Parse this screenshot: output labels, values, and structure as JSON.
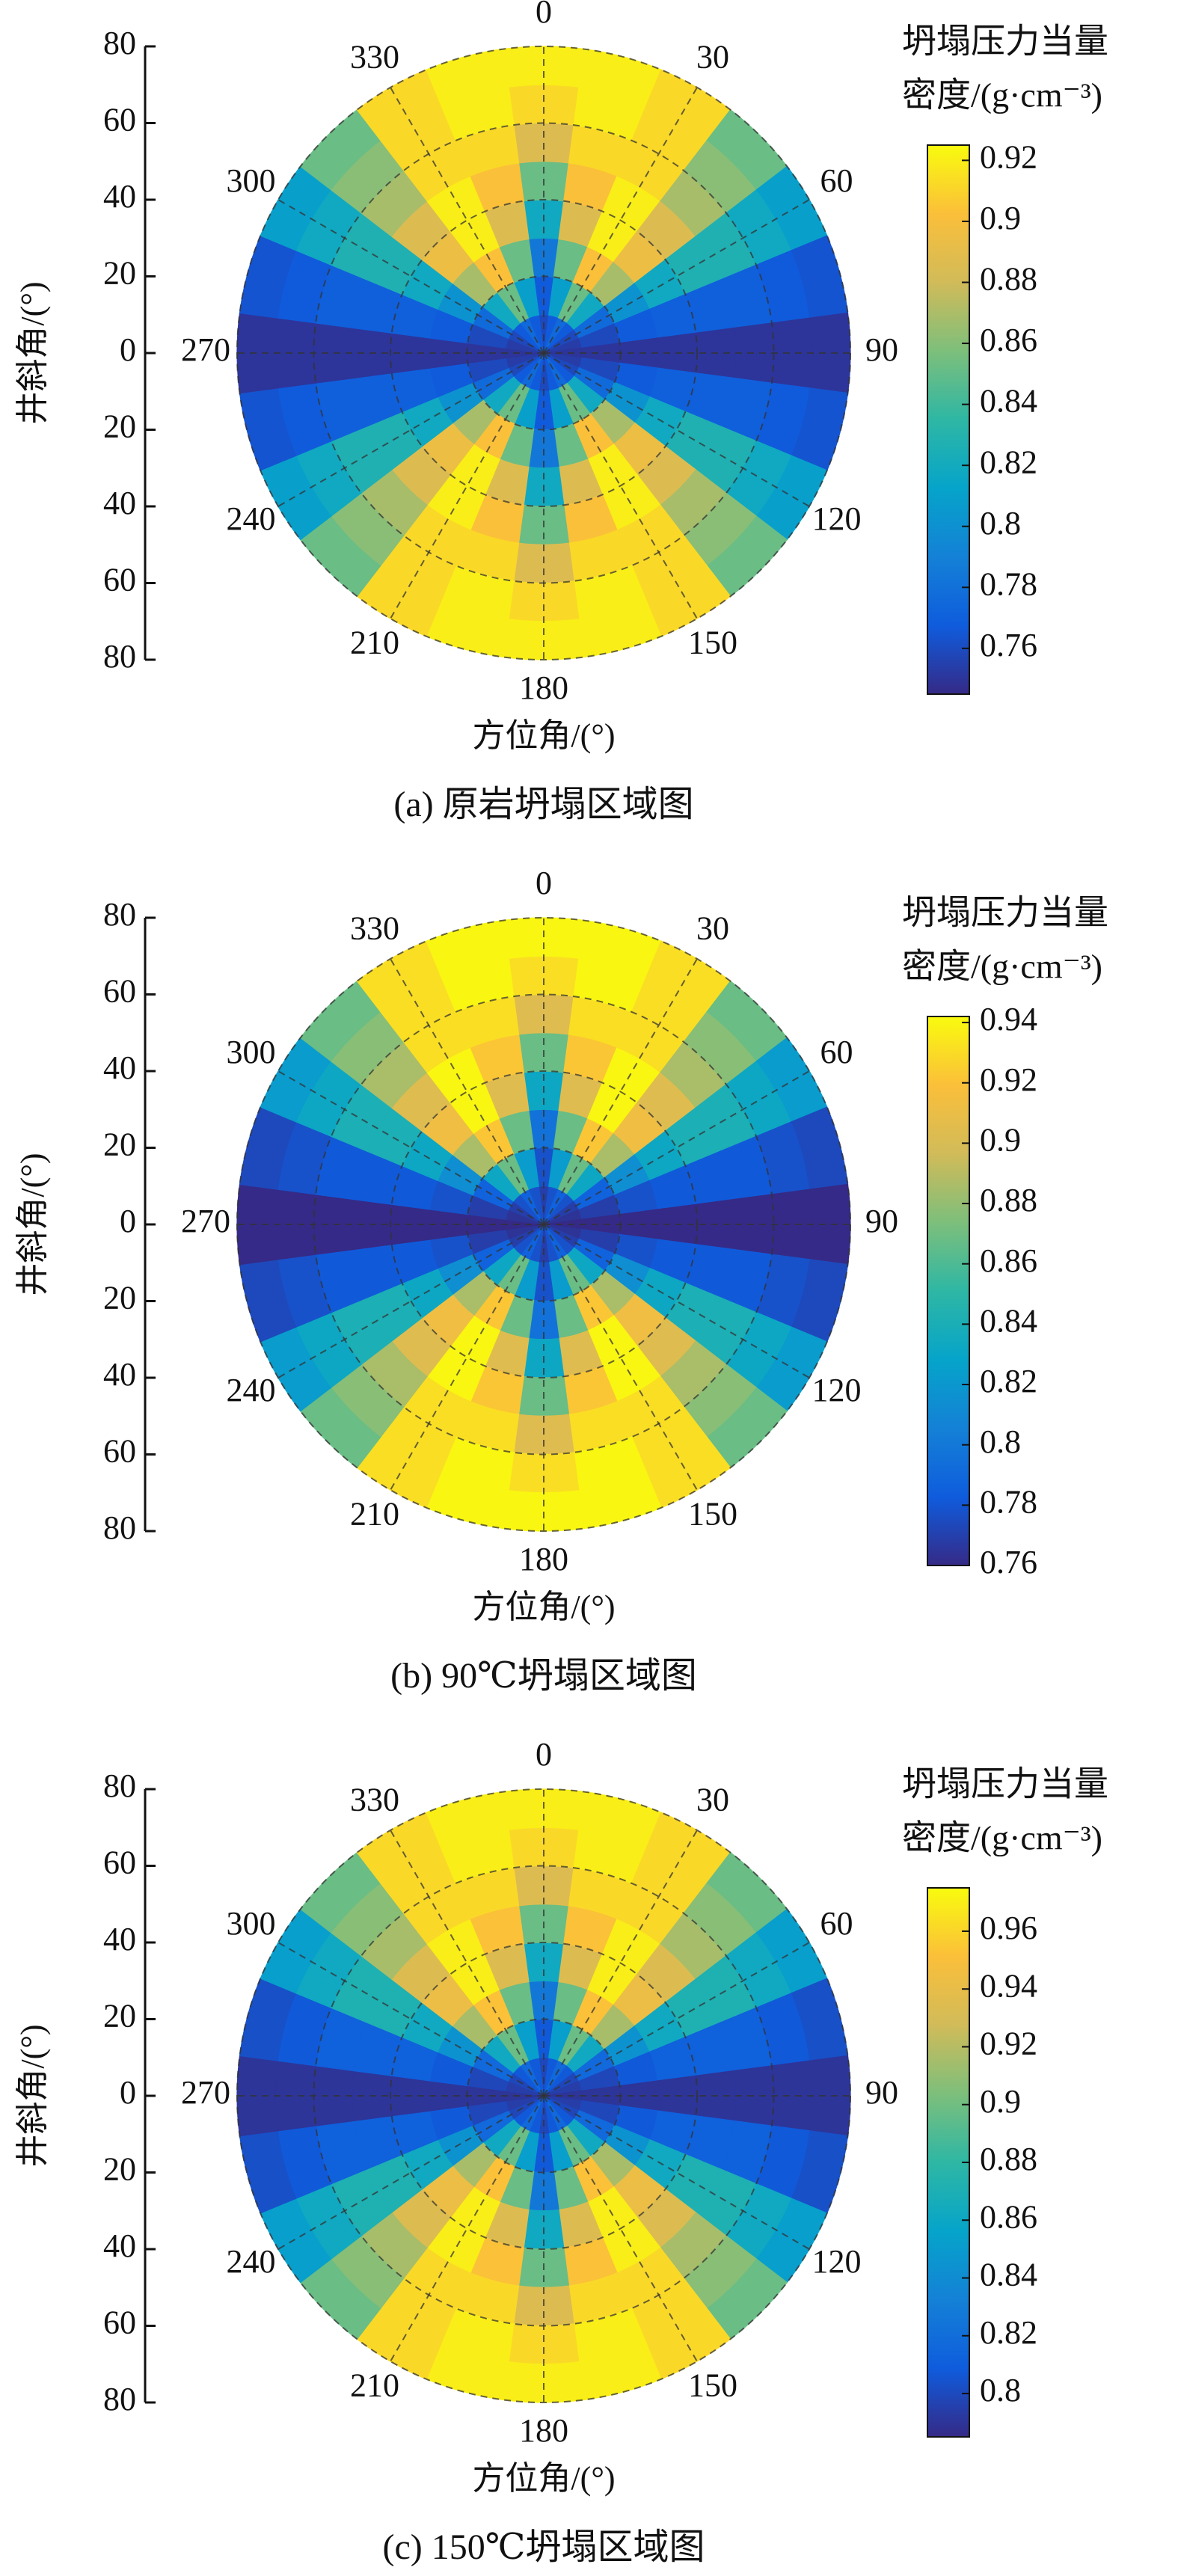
{
  "chart_data": [
    {
      "type": "polar_heatmap",
      "title": "(a) 原岩坍塌区域图",
      "xlabel": "方位角/(°)",
      "ylabel": "井斜角/(°)",
      "colorbar_label": [
        "坍塌压力当量",
        "密度/(g·cm⁻³)"
      ],
      "azimuth_ticks": [
        0,
        30,
        60,
        90,
        120,
        150,
        180,
        210,
        240,
        270,
        300,
        330
      ],
      "rlim": [
        0,
        80
      ],
      "radial_ticks": [
        0,
        20,
        40,
        60,
        80
      ],
      "azimuth_bins": [
        0,
        15,
        30,
        45,
        60,
        75,
        90,
        105,
        120,
        135,
        150,
        165,
        180,
        195,
        210,
        225,
        240,
        255,
        270,
        285,
        300,
        315,
        330,
        345
      ],
      "inclination_bins": [
        0,
        10,
        20,
        30,
        40,
        50,
        60,
        70,
        80
      ],
      "values": [
        [
          0.759,
          0.767,
          0.784,
          0.818,
          0.852,
          0.886,
          0.912,
          0.92
        ],
        [
          0.767,
          0.81,
          0.852,
          0.886,
          0.903,
          0.912,
          0.92,
          0.92
        ],
        [
          0.776,
          0.852,
          0.903,
          0.92,
          0.92,
          0.912,
          0.912,
          0.912
        ],
        [
          0.767,
          0.818,
          0.869,
          0.895,
          0.886,
          0.869,
          0.861,
          0.852
        ],
        [
          0.759,
          0.776,
          0.801,
          0.818,
          0.827,
          0.827,
          0.818,
          0.81
        ],
        [
          0.753,
          0.759,
          0.767,
          0.77,
          0.77,
          0.77,
          0.767,
          0.764
        ],
        [
          0.75,
          0.75,
          0.75,
          0.75,
          0.75,
          0.75,
          0.75,
          0.75
        ],
        [
          0.753,
          0.759,
          0.767,
          0.77,
          0.77,
          0.77,
          0.767,
          0.764
        ],
        [
          0.759,
          0.776,
          0.801,
          0.818,
          0.827,
          0.827,
          0.818,
          0.81
        ],
        [
          0.767,
          0.818,
          0.869,
          0.895,
          0.886,
          0.869,
          0.861,
          0.852
        ],
        [
          0.776,
          0.852,
          0.903,
          0.92,
          0.92,
          0.912,
          0.912,
          0.912
        ],
        [
          0.767,
          0.81,
          0.852,
          0.886,
          0.903,
          0.912,
          0.92,
          0.92
        ],
        [
          0.759,
          0.767,
          0.784,
          0.818,
          0.852,
          0.886,
          0.912,
          0.92
        ],
        [
          0.767,
          0.81,
          0.852,
          0.886,
          0.903,
          0.912,
          0.92,
          0.92
        ],
        [
          0.776,
          0.852,
          0.903,
          0.92,
          0.92,
          0.912,
          0.912,
          0.912
        ],
        [
          0.767,
          0.818,
          0.869,
          0.895,
          0.886,
          0.869,
          0.861,
          0.852
        ],
        [
          0.759,
          0.776,
          0.801,
          0.818,
          0.827,
          0.827,
          0.818,
          0.81
        ],
        [
          0.753,
          0.759,
          0.767,
          0.77,
          0.77,
          0.77,
          0.767,
          0.764
        ],
        [
          0.75,
          0.75,
          0.75,
          0.75,
          0.75,
          0.75,
          0.75,
          0.75
        ],
        [
          0.753,
          0.759,
          0.767,
          0.77,
          0.77,
          0.77,
          0.767,
          0.764
        ],
        [
          0.759,
          0.776,
          0.801,
          0.818,
          0.827,
          0.827,
          0.818,
          0.81
        ],
        [
          0.767,
          0.818,
          0.869,
          0.895,
          0.886,
          0.869,
          0.861,
          0.852
        ],
        [
          0.776,
          0.852,
          0.903,
          0.92,
          0.92,
          0.912,
          0.912,
          0.912
        ],
        [
          0.767,
          0.81,
          0.852,
          0.886,
          0.903,
          0.912,
          0.92,
          0.92
        ]
      ],
      "clim": [
        0.745,
        0.925
      ],
      "cticks": [
        0.76,
        0.78,
        0.8,
        0.82,
        0.84,
        0.86,
        0.88,
        0.9,
        0.92
      ],
      "colormap": [
        "#352a87",
        "#0f5cdd",
        "#1481d6",
        "#06a4ca",
        "#2eb7a4",
        "#7dbf7b",
        "#d1bb59",
        "#fbbf3a",
        "#f9fb0e"
      ]
    },
    {
      "type": "polar_heatmap",
      "title": "(b) 90℃坍塌区域图",
      "xlabel": "方位角/(°)",
      "ylabel": "井斜角/(°)",
      "colorbar_label": [
        "坍塌压力当量",
        "密度/(g·cm⁻³)"
      ],
      "azimuth_ticks": [
        0,
        30,
        60,
        90,
        120,
        150,
        180,
        210,
        240,
        270,
        300,
        330
      ],
      "rlim": [
        0,
        80
      ],
      "radial_ticks": [
        0,
        20,
        40,
        60,
        80
      ],
      "azimuth_bins": [
        0,
        15,
        30,
        45,
        60,
        75,
        90,
        105,
        120,
        135,
        150,
        165,
        180,
        195,
        210,
        225,
        240,
        255,
        270,
        285,
        300,
        315,
        330,
        345
      ],
      "inclination_bins": [
        0,
        10,
        20,
        30,
        40,
        50,
        60,
        70,
        80
      ],
      "values": [
        [
          0.769,
          0.778,
          0.796,
          0.832,
          0.868,
          0.904,
          0.931,
          0.94
        ],
        [
          0.778,
          0.823,
          0.868,
          0.904,
          0.922,
          0.931,
          0.94,
          0.94
        ],
        [
          0.787,
          0.868,
          0.922,
          0.94,
          0.94,
          0.931,
          0.931,
          0.931
        ],
        [
          0.778,
          0.832,
          0.886,
          0.913,
          0.904,
          0.886,
          0.877,
          0.868
        ],
        [
          0.769,
          0.787,
          0.814,
          0.832,
          0.841,
          0.841,
          0.832,
          0.823
        ],
        [
          0.764,
          0.769,
          0.778,
          0.782,
          0.782,
          0.782,
          0.778,
          0.774
        ],
        [
          0.76,
          0.76,
          0.76,
          0.76,
          0.76,
          0.76,
          0.76,
          0.76
        ],
        [
          0.764,
          0.769,
          0.778,
          0.782,
          0.782,
          0.782,
          0.778,
          0.774
        ],
        [
          0.769,
          0.787,
          0.814,
          0.832,
          0.841,
          0.841,
          0.832,
          0.823
        ],
        [
          0.778,
          0.832,
          0.886,
          0.913,
          0.904,
          0.886,
          0.877,
          0.868
        ],
        [
          0.787,
          0.868,
          0.922,
          0.94,
          0.94,
          0.931,
          0.931,
          0.931
        ],
        [
          0.778,
          0.823,
          0.868,
          0.904,
          0.922,
          0.931,
          0.94,
          0.94
        ],
        [
          0.769,
          0.778,
          0.796,
          0.832,
          0.868,
          0.904,
          0.931,
          0.94
        ],
        [
          0.778,
          0.823,
          0.868,
          0.904,
          0.922,
          0.931,
          0.94,
          0.94
        ],
        [
          0.787,
          0.868,
          0.922,
          0.94,
          0.94,
          0.931,
          0.931,
          0.931
        ],
        [
          0.778,
          0.832,
          0.886,
          0.913,
          0.904,
          0.886,
          0.877,
          0.868
        ],
        [
          0.769,
          0.787,
          0.814,
          0.832,
          0.841,
          0.841,
          0.832,
          0.823
        ],
        [
          0.764,
          0.769,
          0.778,
          0.782,
          0.782,
          0.782,
          0.778,
          0.774
        ],
        [
          0.76,
          0.76,
          0.76,
          0.76,
          0.76,
          0.76,
          0.76,
          0.76
        ],
        [
          0.764,
          0.769,
          0.778,
          0.782,
          0.782,
          0.782,
          0.778,
          0.774
        ],
        [
          0.769,
          0.787,
          0.814,
          0.832,
          0.841,
          0.841,
          0.832,
          0.823
        ],
        [
          0.778,
          0.832,
          0.886,
          0.913,
          0.904,
          0.886,
          0.877,
          0.868
        ],
        [
          0.787,
          0.868,
          0.922,
          0.94,
          0.94,
          0.931,
          0.931,
          0.931
        ],
        [
          0.778,
          0.823,
          0.868,
          0.904,
          0.922,
          0.931,
          0.94,
          0.94
        ]
      ],
      "clim": [
        0.76,
        0.942
      ],
      "cticks": [
        0.76,
        0.78,
        0.8,
        0.82,
        0.84,
        0.86,
        0.88,
        0.9,
        0.92,
        0.94
      ],
      "colormap": [
        "#352a87",
        "#0f5cdd",
        "#1481d6",
        "#06a4ca",
        "#2eb7a4",
        "#7dbf7b",
        "#d1bb59",
        "#fbbf3a",
        "#f9fb0e"
      ]
    },
    {
      "type": "polar_heatmap",
      "title": "(c) 150℃坍塌区域图",
      "xlabel": "方位角/(°)",
      "ylabel": "井斜角/(°)",
      "colorbar_label": [
        "坍塌压力当量",
        "密度/(g·cm⁻³)"
      ],
      "azimuth_ticks": [
        0,
        30,
        60,
        90,
        120,
        150,
        180,
        210,
        240,
        270,
        300,
        330
      ],
      "rlim": [
        0,
        80
      ],
      "radial_ticks": [
        0,
        20,
        40,
        60,
        80
      ],
      "azimuth_bins": [
        0,
        15,
        30,
        45,
        60,
        75,
        90,
        105,
        120,
        135,
        150,
        165,
        180,
        195,
        210,
        225,
        240,
        255,
        270,
        285,
        300,
        315,
        330,
        345
      ],
      "inclination_bins": [
        0,
        10,
        20,
        30,
        40,
        50,
        60,
        70,
        80
      ],
      "values": [
        [
          0.799,
          0.808,
          0.826,
          0.862,
          0.898,
          0.934,
          0.961,
          0.97
        ],
        [
          0.808,
          0.853,
          0.898,
          0.934,
          0.952,
          0.961,
          0.97,
          0.97
        ],
        [
          0.817,
          0.898,
          0.952,
          0.97,
          0.97,
          0.961,
          0.961,
          0.961
        ],
        [
          0.808,
          0.862,
          0.916,
          0.943,
          0.934,
          0.916,
          0.907,
          0.898
        ],
        [
          0.799,
          0.817,
          0.844,
          0.862,
          0.871,
          0.871,
          0.862,
          0.853
        ],
        [
          0.794,
          0.799,
          0.808,
          0.812,
          0.812,
          0.812,
          0.808,
          0.803
        ],
        [
          0.79,
          0.79,
          0.79,
          0.79,
          0.79,
          0.79,
          0.79,
          0.79
        ],
        [
          0.794,
          0.799,
          0.808,
          0.812,
          0.812,
          0.812,
          0.808,
          0.803
        ],
        [
          0.799,
          0.817,
          0.844,
          0.862,
          0.871,
          0.871,
          0.862,
          0.853
        ],
        [
          0.808,
          0.862,
          0.916,
          0.943,
          0.934,
          0.916,
          0.907,
          0.898
        ],
        [
          0.817,
          0.898,
          0.952,
          0.97,
          0.97,
          0.961,
          0.961,
          0.961
        ],
        [
          0.808,
          0.853,
          0.898,
          0.934,
          0.952,
          0.961,
          0.97,
          0.97
        ],
        [
          0.799,
          0.808,
          0.826,
          0.862,
          0.898,
          0.934,
          0.961,
          0.97
        ],
        [
          0.808,
          0.853,
          0.898,
          0.934,
          0.952,
          0.961,
          0.97,
          0.97
        ],
        [
          0.817,
          0.898,
          0.952,
          0.97,
          0.97,
          0.961,
          0.961,
          0.961
        ],
        [
          0.808,
          0.862,
          0.916,
          0.943,
          0.934,
          0.916,
          0.907,
          0.898
        ],
        [
          0.799,
          0.817,
          0.844,
          0.862,
          0.871,
          0.871,
          0.862,
          0.853
        ],
        [
          0.794,
          0.799,
          0.808,
          0.812,
          0.812,
          0.812,
          0.808,
          0.803
        ],
        [
          0.79,
          0.79,
          0.79,
          0.79,
          0.79,
          0.79,
          0.79,
          0.79
        ],
        [
          0.794,
          0.799,
          0.808,
          0.812,
          0.812,
          0.812,
          0.808,
          0.803
        ],
        [
          0.799,
          0.817,
          0.844,
          0.862,
          0.871,
          0.871,
          0.862,
          0.853
        ],
        [
          0.808,
          0.862,
          0.916,
          0.943,
          0.934,
          0.916,
          0.907,
          0.898
        ],
        [
          0.817,
          0.898,
          0.952,
          0.97,
          0.97,
          0.961,
          0.961,
          0.961
        ],
        [
          0.808,
          0.853,
          0.898,
          0.934,
          0.952,
          0.961,
          0.97,
          0.97
        ]
      ],
      "clim": [
        0.785,
        0.975
      ],
      "cticks": [
        0.8,
        0.82,
        0.84,
        0.86,
        0.88,
        0.9,
        0.92,
        0.94,
        0.96
      ],
      "colormap": [
        "#352a87",
        "#0f5cdd",
        "#1481d6",
        "#06a4ca",
        "#2eb7a4",
        "#7dbf7b",
        "#d1bb59",
        "#fbbf3a",
        "#f9fb0e"
      ]
    }
  ]
}
